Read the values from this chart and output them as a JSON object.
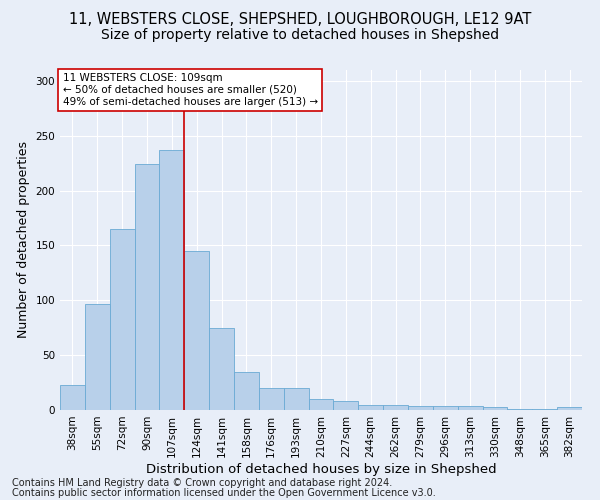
{
  "title1": "11, WEBSTERS CLOSE, SHEPSHED, LOUGHBOROUGH, LE12 9AT",
  "title2": "Size of property relative to detached houses in Shepshed",
  "xlabel": "Distribution of detached houses by size in Shepshed",
  "ylabel": "Number of detached properties",
  "footnote1": "Contains HM Land Registry data © Crown copyright and database right 2024.",
  "footnote2": "Contains public sector information licensed under the Open Government Licence v3.0.",
  "bar_labels": [
    "38sqm",
    "55sqm",
    "72sqm",
    "90sqm",
    "107sqm",
    "124sqm",
    "141sqm",
    "158sqm",
    "176sqm",
    "193sqm",
    "210sqm",
    "227sqm",
    "244sqm",
    "262sqm",
    "279sqm",
    "296sqm",
    "313sqm",
    "330sqm",
    "348sqm",
    "365sqm",
    "382sqm"
  ],
  "bar_values": [
    23,
    97,
    165,
    224,
    237,
    145,
    75,
    35,
    20,
    20,
    10,
    8,
    5,
    5,
    4,
    4,
    4,
    3,
    1,
    1,
    3
  ],
  "bar_color": "#b8d0ea",
  "bar_edge_color": "#6aaad4",
  "property_label": "11 WEBSTERS CLOSE: 109sqm",
  "annotation_line1": "← 50% of detached houses are smaller (520)",
  "annotation_line2": "49% of semi-detached houses are larger (513) →",
  "vline_color": "#cc0000",
  "annotation_box_facecolor": "#ffffff",
  "annotation_box_edgecolor": "#cc0000",
  "ylim": [
    0,
    310
  ],
  "yticks": [
    0,
    50,
    100,
    150,
    200,
    250,
    300
  ],
  "bg_color": "#e8eef8",
  "grid_color": "#ffffff",
  "title1_fontsize": 10.5,
  "title2_fontsize": 10,
  "xlabel_fontsize": 9.5,
  "ylabel_fontsize": 9,
  "tick_fontsize": 7.5,
  "footnote_fontsize": 7,
  "vline_x_index": 4.5
}
